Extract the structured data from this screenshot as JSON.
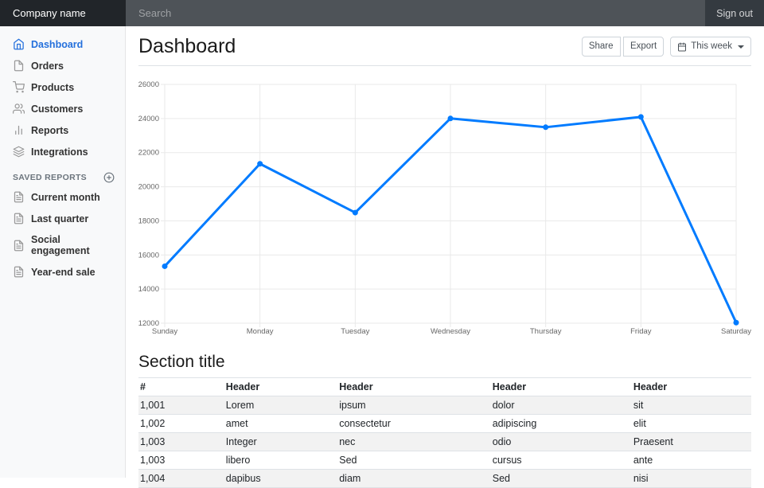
{
  "navbar": {
    "brand": "Company name",
    "search_placeholder": "Search",
    "sign_out": "Sign out"
  },
  "sidebar": {
    "items": [
      {
        "label": "Dashboard",
        "icon": "home-icon",
        "active": true
      },
      {
        "label": "Orders",
        "icon": "file-icon",
        "active": false
      },
      {
        "label": "Products",
        "icon": "shopping-cart-icon",
        "active": false
      },
      {
        "label": "Customers",
        "icon": "users-icon",
        "active": false
      },
      {
        "label": "Reports",
        "icon": "bar-chart-icon",
        "active": false
      },
      {
        "label": "Integrations",
        "icon": "layers-icon",
        "active": false
      }
    ],
    "saved_reports": {
      "heading": "Saved reports",
      "add_icon": "plus-circle-icon",
      "items": [
        {
          "label": "Current month",
          "icon": "file-text-icon"
        },
        {
          "label": "Last quarter",
          "icon": "file-text-icon"
        },
        {
          "label": "Social engagement",
          "icon": "file-text-icon"
        },
        {
          "label": "Year-end sale",
          "icon": "file-text-icon"
        }
      ]
    }
  },
  "header": {
    "title": "Dashboard",
    "buttons": [
      "Share",
      "Export"
    ],
    "period_button": "This week",
    "period_icon": "calendar-icon"
  },
  "chart_data": {
    "type": "line",
    "x": [
      "Sunday",
      "Monday",
      "Tuesday",
      "Wednesday",
      "Thursday",
      "Friday",
      "Saturday"
    ],
    "series": [
      {
        "name": "This week",
        "values": [
          15339,
          21345,
          18483,
          24003,
          23489,
          24092,
          12034
        ]
      }
    ],
    "title": "",
    "xlabel": "",
    "ylabel": "",
    "ylim": [
      12000,
      26000
    ],
    "ytick_step": 2000,
    "grid": true,
    "legend_position": "none",
    "line_color": "#007bff",
    "grid_color": "#e9e9e9",
    "tick_color": "#666666"
  },
  "section": {
    "title": "Section title",
    "table": {
      "headers": [
        "#",
        "Header",
        "Header",
        "Header",
        "Header"
      ],
      "rows": [
        [
          "1,001",
          "Lorem",
          "ipsum",
          "dolor",
          "sit"
        ],
        [
          "1,002",
          "amet",
          "consectetur",
          "adipiscing",
          "elit"
        ],
        [
          "1,003",
          "Integer",
          "nec",
          "odio",
          "Praesent"
        ],
        [
          "1,003",
          "libero",
          "Sed",
          "cursus",
          "ante"
        ],
        [
          "1,004",
          "dapibus",
          "diam",
          "Sed",
          "nisi"
        ]
      ]
    }
  },
  "colors": {
    "navbar_bg": "#212529",
    "sidebar_bg": "#f8f9fa",
    "accent_active": "#2470dc",
    "chart_line": "#007bff"
  }
}
